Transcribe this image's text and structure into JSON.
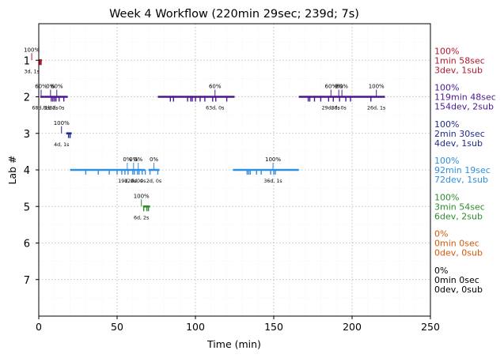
{
  "chart_data": {
    "type": "timeline",
    "title": "Week 4 Workflow (220min 29sec; 239d; 7s)",
    "xlabel": "Time (min)",
    "ylabel": "Lab #",
    "xlim": [
      0,
      250
    ],
    "ylim": [
      8,
      0
    ],
    "xticks": [
      0,
      50,
      100,
      150,
      200,
      250
    ],
    "yticks": [
      1,
      2,
      3,
      4,
      5,
      6,
      7
    ],
    "grid": true,
    "lanes": [
      {
        "lab": 1,
        "color": "#b2182b",
        "segments": [
          [
            0.0,
            2.0
          ]
        ],
        "ticks": [
          0.5,
          1.0,
          1.5
        ],
        "labels": [
          {
            "x": -5,
            "above": "100%",
            "below": "3d, 1s"
          }
        ],
        "summary": [
          "100%",
          "1min 58sec",
          "3dev, 1sub"
        ]
      },
      {
        "lab": 2,
        "color": "#4b1790",
        "segments": [
          [
            1.0,
            18.5
          ],
          [
            76.0,
            125.0
          ],
          [
            166.0,
            221.0
          ]
        ],
        "ticks": [
          8,
          9,
          10,
          11,
          13,
          16,
          84,
          86,
          95,
          97,
          98,
          100,
          103,
          106,
          111,
          113,
          120,
          172,
          173,
          176,
          180,
          185,
          188,
          192,
          196,
          199,
          212
        ],
        "labels": [
          {
            "x": 1,
            "above": "60%",
            "below": "68d, 1s"
          },
          {
            "x": 7,
            "above": "0%",
            "below": "8d, 2s"
          },
          {
            "x": 11,
            "above": "60%",
            "below": "8d, 0s"
          },
          {
            "x": 94,
            "above": "",
            "below": ""
          },
          {
            "x": 112,
            "above": "60%",
            "below": "63d, 0s"
          },
          {
            "x": 186,
            "above": "60%",
            "below": "29d, 0s"
          },
          {
            "x": 191,
            "above": "0%",
            "below": "8d, 0s"
          },
          {
            "x": 193,
            "above": "60%",
            "below": ""
          },
          {
            "x": 215,
            "above": "100%",
            "below": "26d, 1s"
          }
        ],
        "summary": [
          "100%",
          "119min 48sec",
          "154dev, 2sub"
        ]
      },
      {
        "lab": 3,
        "color": "#1f2b8c",
        "segments": [
          [
            17.5,
            21.0
          ]
        ],
        "ticks": [
          19,
          20
        ],
        "labels": [
          {
            "x": 14,
            "above": "100%",
            "below": "4d, 1s"
          }
        ],
        "summary": [
          "100%",
          "2min 30sec",
          "4dev, 1sub"
        ]
      },
      {
        "lab": 4,
        "color": "#2e8fe0",
        "segments": [
          [
            20.0,
            68.0
          ],
          [
            70.0,
            77.0
          ],
          [
            124.0,
            166.0
          ]
        ],
        "ticks": [
          30,
          38,
          45,
          50,
          53,
          55,
          57,
          60,
          61,
          63,
          64,
          66,
          68,
          71,
          76,
          133,
          134,
          135,
          139,
          142,
          148,
          150,
          151
        ],
        "labels": [
          {
            "x": 56,
            "above": "0%",
            "below": "19d, 0s"
          },
          {
            "x": 60,
            "above": "0%",
            "below": "12d, 0s"
          },
          {
            "x": 63,
            "above": "0%",
            "below": "2d, 0s"
          },
          {
            "x": 73,
            "above": "0%",
            "below": "2d, 0s"
          },
          {
            "x": 149,
            "above": "100%",
            "below": "36d, 1s"
          }
        ],
        "summary": [
          "100%",
          "92min 19sec",
          "72dev, 1sub"
        ]
      },
      {
        "lab": 5,
        "color": "#2e8b2e",
        "segments": [
          [
            66.5,
            71.0
          ]
        ],
        "ticks": [
          67,
          69,
          70
        ],
        "labels": [
          {
            "x": 65,
            "above": "100%",
            "below": "6d, 2s"
          }
        ],
        "summary": [
          "100%",
          "3min 54sec",
          "6dev, 2sub"
        ]
      },
      {
        "lab": 6,
        "color": "#d65a0c",
        "segments": [],
        "ticks": [],
        "labels": [],
        "summary": [
          "0%",
          "0min 0sec",
          "0dev, 0sub"
        ]
      },
      {
        "lab": 7,
        "color": "#000000",
        "segments": [],
        "ticks": [],
        "labels": [],
        "summary": [
          "0%",
          "0min 0sec",
          "0dev, 0sub"
        ]
      }
    ]
  }
}
